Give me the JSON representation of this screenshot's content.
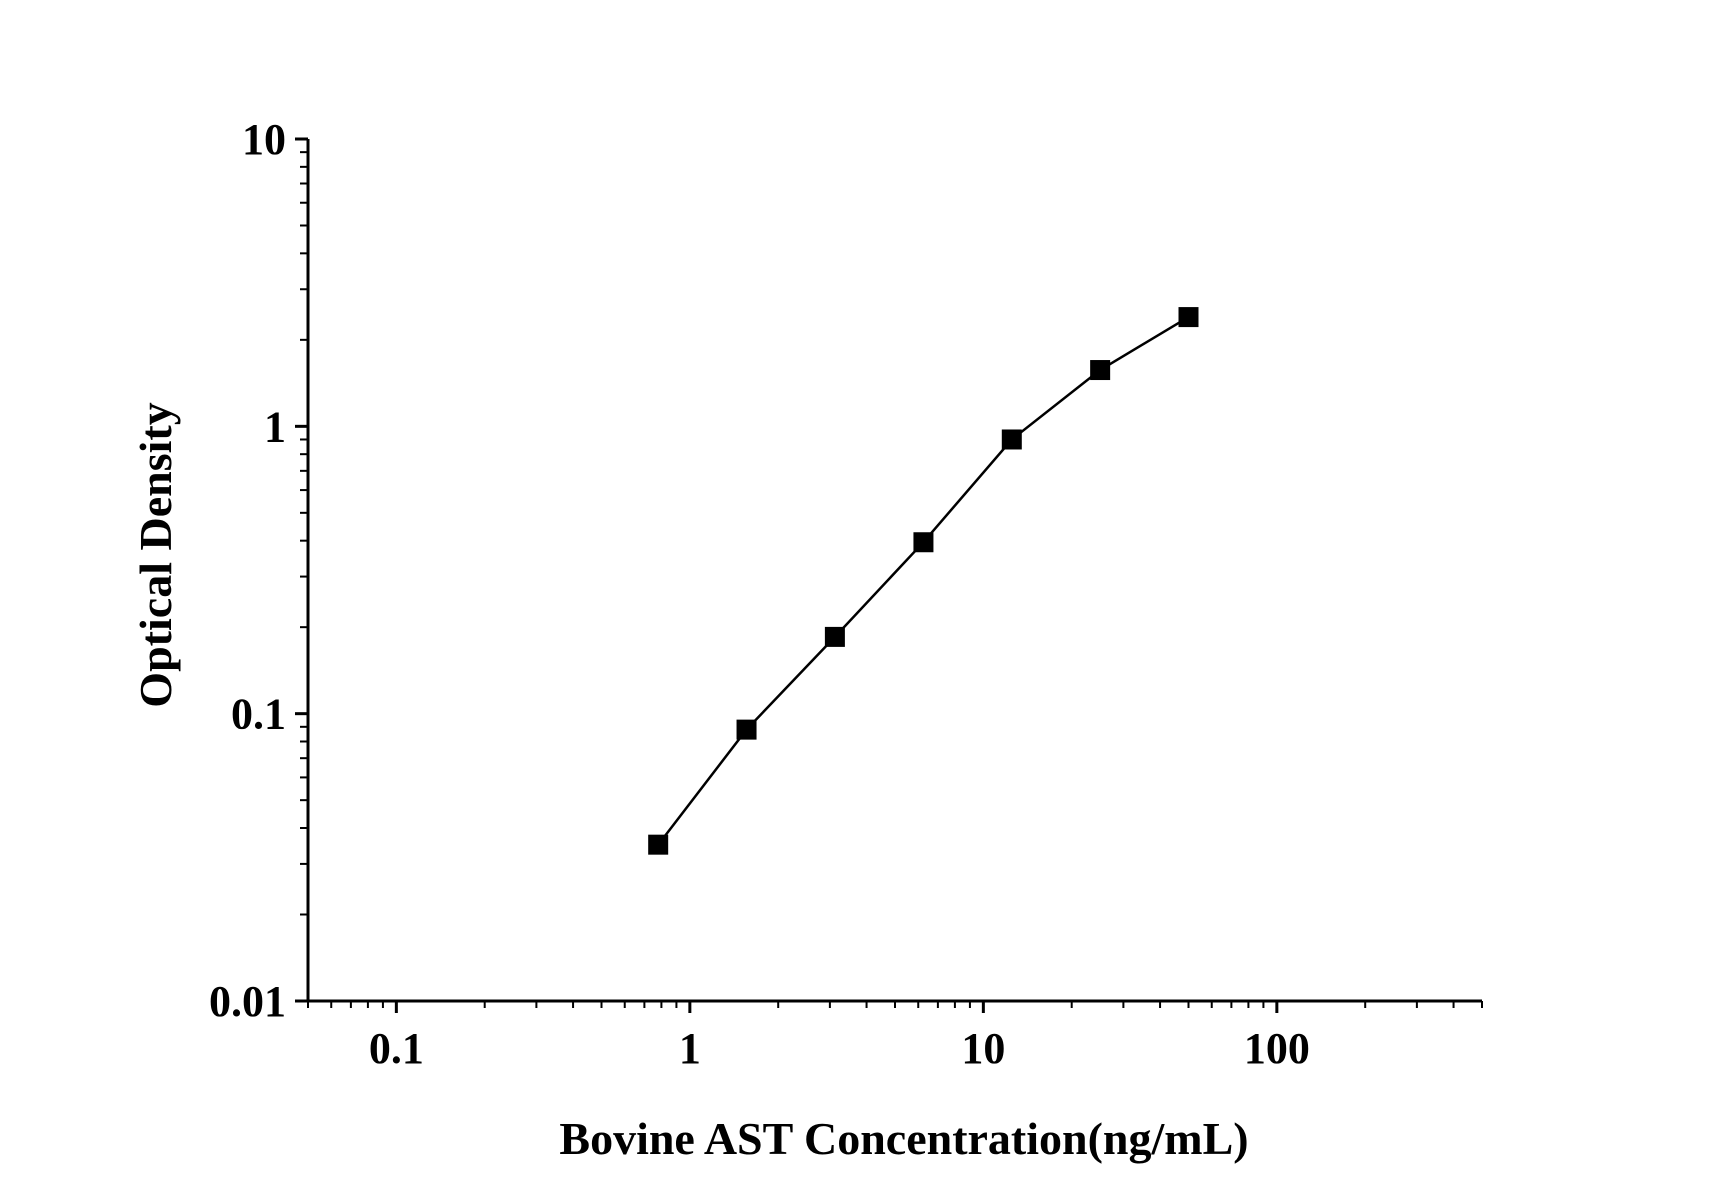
{
  "chart_data": {
    "type": "line",
    "title": "",
    "xlabel": "Bovine AST Concentration(ng/mL)",
    "ylabel": "Optical Density",
    "xscale": "log",
    "yscale": "log",
    "xlim": [
      0.05,
      500
    ],
    "ylim": [
      0.01,
      10
    ],
    "x_ticks": [
      0.1,
      1,
      10,
      100
    ],
    "x_tick_labels": [
      "0.1",
      "1",
      "10",
      "100"
    ],
    "y_ticks": [
      0.01,
      0.1,
      1,
      10
    ],
    "y_tick_labels": [
      "0.01",
      "0.1",
      "1",
      "10"
    ],
    "grid": false,
    "legend": "none",
    "marker": "square",
    "series": [
      {
        "x": [
          0.78,
          1.56,
          3.12,
          6.25,
          12.5,
          25,
          50
        ],
        "y": [
          0.035,
          0.088,
          0.185,
          0.395,
          0.9,
          1.57,
          2.4
        ]
      }
    ],
    "colors": {
      "line": "#000000",
      "marker": "#000000",
      "axis": "#000000"
    }
  }
}
